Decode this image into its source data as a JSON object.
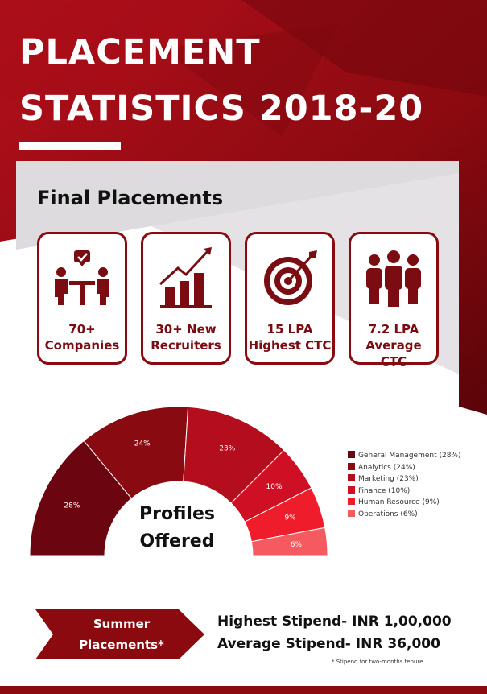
{
  "header": {
    "title_line1": "PLACEMENT",
    "title_line2": "STATISTICS 2018-20"
  },
  "section_title": "Final Placements",
  "stats": [
    {
      "icon": "meeting-icon",
      "line1": "70+",
      "line2": "Companies"
    },
    {
      "icon": "growth-chart-icon",
      "line1": "30+ New",
      "line2": "Recruiters"
    },
    {
      "icon": "target-icon",
      "line1": "15 LPA",
      "line2": "Highest CTC"
    },
    {
      "icon": "people-group-icon",
      "line1": "7.2 LPA",
      "line2": "Average CTC"
    }
  ],
  "chart_data": {
    "type": "pie",
    "title": "Profiles Offered",
    "title_line1": "Profiles",
    "title_line2": "Offered",
    "categories": [
      "General Management",
      "Analytics",
      "Marketing",
      "Finance",
      "Human Resource",
      "Operations"
    ],
    "values": [
      28,
      24,
      23,
      10,
      9,
      6
    ],
    "value_labels": [
      "28%",
      "24%",
      "23%",
      "10%",
      "9%",
      "6%"
    ],
    "legend_labels": [
      "General Management (28%)",
      "Analytics (24%)",
      "Marketing (23%)",
      "Finance (10%)",
      "Human Resource (9%)",
      "Operations (6%)"
    ],
    "colors": [
      "#6b0610",
      "#8a0a12",
      "#b30d1e",
      "#cf1024",
      "#ef1c2c",
      "#f45a60"
    ],
    "legend_position": "right"
  },
  "summer": {
    "label_line1": "Summer",
    "label_line2": "Placements*",
    "highest": "Highest Stipend- INR 1,00,000",
    "average": "Average Stipend- INR 36,000",
    "footnote": "* Stipend for two-months tenure."
  },
  "colors": {
    "brand": "#8b0a10",
    "dark": "#5a0409",
    "light": "#b80f1c"
  }
}
